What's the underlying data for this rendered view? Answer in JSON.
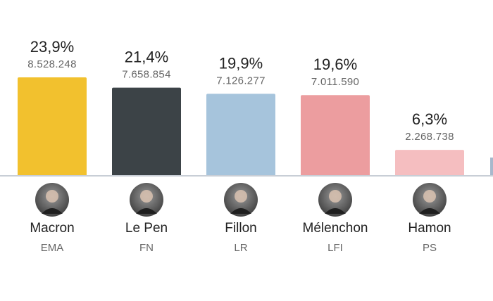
{
  "chart_data": {
    "type": "bar",
    "categories": [
      "Macron",
      "Le Pen",
      "Fillon",
      "Mélenchon",
      "Hamon"
    ],
    "parties": [
      "EMA",
      "FN",
      "LR",
      "LFI",
      "PS"
    ],
    "values": [
      23.9,
      21.4,
      19.9,
      19.6,
      6.3
    ],
    "value_labels": [
      "23,9%",
      "21,4%",
      "19,9%",
      "19,6%",
      "6,3%"
    ],
    "votes": [
      "8.528.248",
      "7.658.854",
      "7.126.277",
      "7.011.590",
      "2.268.738"
    ],
    "colors": [
      "#f2c12e",
      "#3c4347",
      "#a6c4dc",
      "#ec9d9f",
      "#f5bec0"
    ],
    "avatar_icons": [
      "macron-avatar",
      "le-pen-avatar",
      "fillon-avatar",
      "melenchon-avatar",
      "hamon-avatar"
    ],
    "baseline_color": "#c8ced6",
    "partial_next_bar_color": "#a8b8cc"
  }
}
